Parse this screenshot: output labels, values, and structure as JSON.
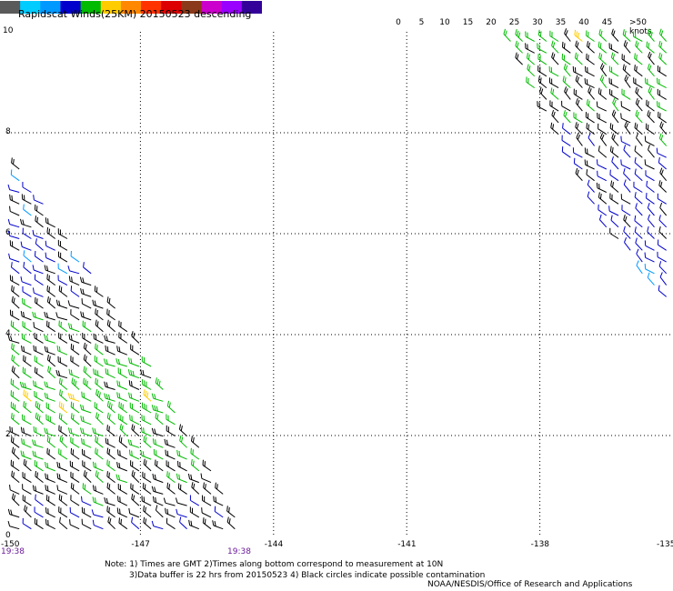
{
  "title": "Rapidscat Winds(25KM) 20150523 descending",
  "legend": {
    "labels": [
      "0",
      "5",
      "10",
      "15",
      "20",
      "25",
      "30",
      "35",
      "40",
      "45",
      ">50 knots"
    ],
    "colors": [
      "#5a5a5a",
      "#00ccff",
      "#0099ff",
      "#0000cc",
      "#00bb00",
      "#ffcc00",
      "#ff8800",
      "#ff3300",
      "#dd0000",
      "#8a3a1a",
      "#cc00cc",
      "#9900ff",
      "#330099"
    ]
  },
  "axes": {
    "y_labels": [
      "10",
      "8",
      "6",
      "4",
      "2",
      "0"
    ],
    "x_labels": [
      "-150",
      "-147",
      "-144",
      "-141",
      "-138",
      "-135"
    ],
    "time_labels": [
      "19:38",
      "19:38"
    ]
  },
  "notes": {
    "line1": "Note: 1) Times are GMT 2)Times along bottom correspond to measurement at 10N",
    "line2": "3)Data buffer is 22 hrs from 20150523 4) Black circles indicate possible contamination"
  },
  "credit": "NOAA/NESDIS/Office of Research and Applications",
  "map_data": {
    "lon_range": [
      -150,
      -135
    ],
    "lat_range": [
      0,
      10
    ],
    "swaths": [
      {
        "name": "west",
        "polygon": [
          [
            -149.8,
            7.4
          ],
          [
            -147.0,
            3.8
          ],
          [
            -144.6,
            0.1
          ],
          [
            -149.9,
            0.1
          ]
        ]
      },
      {
        "name": "east",
        "polygon": [
          [
            -138.9,
            10.0
          ],
          [
            -135.0,
            10.0
          ],
          [
            -135.0,
            4.5
          ],
          [
            -136.5,
            6.0
          ]
        ]
      }
    ]
  }
}
